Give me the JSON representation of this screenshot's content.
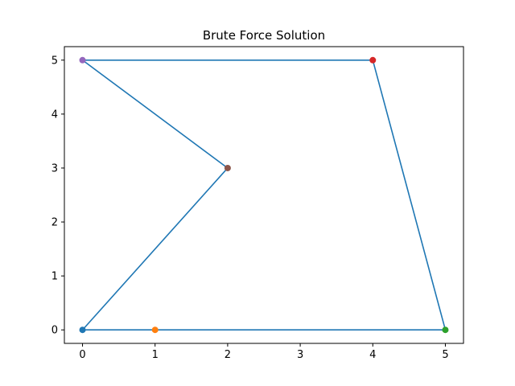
{
  "chart_data": {
    "type": "line",
    "title": "Brute Force Solution",
    "xlabel": "",
    "ylabel": "",
    "xlim": [
      -0.25,
      5.25
    ],
    "ylim": [
      -0.25,
      5.25
    ],
    "xticks": [
      "0",
      "1",
      "2",
      "3",
      "4",
      "5"
    ],
    "yticks": [
      "0",
      "1",
      "2",
      "3",
      "4",
      "5"
    ],
    "grid": false,
    "path": {
      "color": "#1f77b4",
      "x": [
        0,
        1,
        5,
        4,
        0,
        2,
        0
      ],
      "y": [
        0,
        0,
        0,
        5,
        5,
        3,
        0
      ]
    },
    "points": [
      {
        "x": 0,
        "y": 0,
        "color": "#1f77b4"
      },
      {
        "x": 1,
        "y": 0,
        "color": "#ff7f0e"
      },
      {
        "x": 5,
        "y": 0,
        "color": "#2ca02c"
      },
      {
        "x": 4,
        "y": 5,
        "color": "#d62728"
      },
      {
        "x": 0,
        "y": 5,
        "color": "#9467bd"
      },
      {
        "x": 2,
        "y": 3,
        "color": "#8c564b"
      }
    ]
  }
}
